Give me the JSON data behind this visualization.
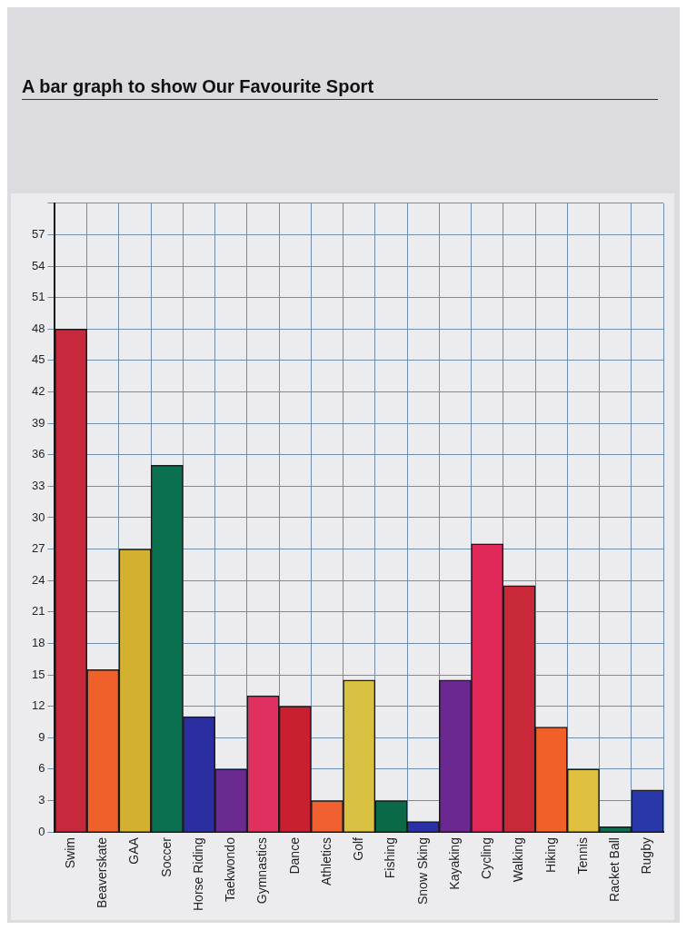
{
  "chart_data": {
    "type": "bar",
    "title": "A bar graph to show Our Favourite Sport",
    "categories": [
      "Swim",
      "Beaverskate",
      "GAA",
      "Soccer",
      "Horse Riding",
      "Taekwondo",
      "Gymnastics",
      "Dance",
      "Athletics",
      "Golf",
      "Fishing",
      "Snow Sking",
      "Kayaking",
      "Cycling",
      "Walking",
      "Hiking",
      "Tennis",
      "Racket Ball",
      "Rugby"
    ],
    "values": [
      48,
      15.5,
      27,
      35,
      11,
      6,
      13,
      12,
      3,
      14.5,
      3,
      1,
      14.5,
      27.5,
      23.5,
      10,
      6,
      0.5,
      4
    ],
    "colors": [
      "#c8283c",
      "#f0602a",
      "#d4b030",
      "#0a7050",
      "#2a2ea0",
      "#6a2a90",
      "#e03060",
      "#c82030",
      "#f06030",
      "#d8c040",
      "#0a6a48",
      "#2a30a8",
      "#6a2890",
      "#e02858",
      "#c82838",
      "#f06028",
      "#e0c040",
      "#0a7050",
      "#2838a8"
    ],
    "ylim": [
      0,
      60
    ],
    "yticks": [
      0,
      3,
      6,
      9,
      12,
      15,
      18,
      21,
      24,
      27,
      30,
      33,
      36,
      39,
      42,
      45,
      48,
      51,
      54,
      57,
      {
        "value": 60,
        "label": null
      }
    ],
    "grid": true
  }
}
